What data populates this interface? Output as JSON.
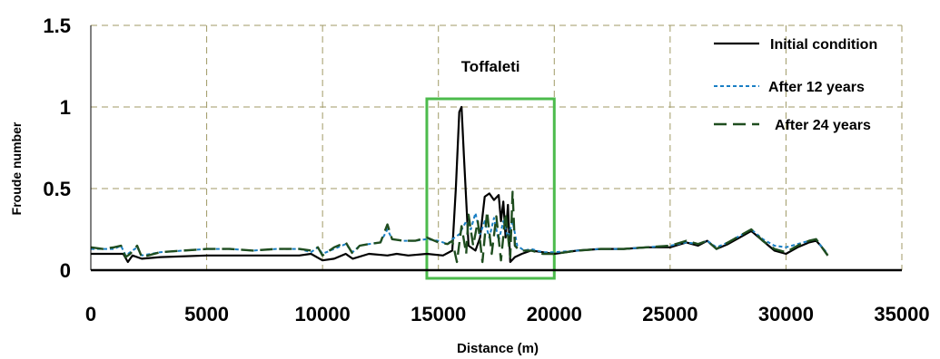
{
  "chart_data": {
    "type": "line",
    "title": "",
    "xlabel": "Distance (m)",
    "ylabel": "Froude number",
    "xlim": [
      0,
      35000
    ],
    "ylim": [
      0,
      1.5
    ],
    "x_ticks": [
      0,
      5000,
      10000,
      15000,
      20000,
      25000,
      30000,
      35000
    ],
    "x_tick_labels": [
      "0",
      "5000",
      "10000",
      "15000",
      "20000",
      "25000",
      "30000",
      "35000"
    ],
    "y_ticks": [
      0,
      0.5,
      1,
      1.5
    ],
    "y_tick_labels": [
      "0",
      "0.5",
      "1",
      "1.5"
    ],
    "grid": true,
    "grid_style": "dashed",
    "grid_color": "#a09a66",
    "legend_position": "top-right",
    "annotation": {
      "text": "Toffaleti",
      "box_x_range": [
        14500,
        20000
      ],
      "box_y_range": [
        -0.05,
        1.05
      ],
      "box_color": "#4cbb4c"
    },
    "series": [
      {
        "name": "Initial condition",
        "color": "#000000",
        "style": "solid",
        "points": [
          [
            0,
            0.1
          ],
          [
            1000,
            0.1
          ],
          [
            1400,
            0.1
          ],
          [
            1600,
            0.05
          ],
          [
            1800,
            0.09
          ],
          [
            2200,
            0.07
          ],
          [
            3000,
            0.08
          ],
          [
            5000,
            0.09
          ],
          [
            7000,
            0.09
          ],
          [
            9000,
            0.09
          ],
          [
            9500,
            0.1
          ],
          [
            10000,
            0.06
          ],
          [
            10500,
            0.07
          ],
          [
            11000,
            0.1
          ],
          [
            11300,
            0.07
          ],
          [
            12000,
            0.1
          ],
          [
            12800,
            0.09
          ],
          [
            13200,
            0.1
          ],
          [
            13700,
            0.09
          ],
          [
            14500,
            0.1
          ],
          [
            15200,
            0.09
          ],
          [
            15600,
            0.12
          ],
          [
            15750,
            0.5
          ],
          [
            15900,
            0.97
          ],
          [
            16000,
            1.0
          ],
          [
            16100,
            0.7
          ],
          [
            16300,
            0.15
          ],
          [
            16600,
            0.12
          ],
          [
            16800,
            0.2
          ],
          [
            17000,
            0.45
          ],
          [
            17200,
            0.47
          ],
          [
            17400,
            0.43
          ],
          [
            17600,
            0.46
          ],
          [
            17700,
            0.3
          ],
          [
            17800,
            0.42
          ],
          [
            17900,
            0.2
          ],
          [
            18000,
            0.4
          ],
          [
            18100,
            0.05
          ],
          [
            18300,
            0.08
          ],
          [
            18600,
            0.1
          ],
          [
            19000,
            0.12
          ],
          [
            19500,
            0.11
          ],
          [
            20000,
            0.1
          ],
          [
            21000,
            0.12
          ],
          [
            22000,
            0.13
          ],
          [
            23000,
            0.13
          ],
          [
            24000,
            0.14
          ],
          [
            25000,
            0.14
          ],
          [
            25700,
            0.17
          ],
          [
            26200,
            0.15
          ],
          [
            26600,
            0.18
          ],
          [
            27000,
            0.13
          ],
          [
            27500,
            0.16
          ],
          [
            28000,
            0.2
          ],
          [
            28500,
            0.24
          ],
          [
            29000,
            0.18
          ],
          [
            29500,
            0.12
          ],
          [
            30000,
            0.1
          ],
          [
            30500,
            0.14
          ],
          [
            31000,
            0.17
          ],
          [
            31300,
            0.18
          ],
          [
            31500,
            0.15
          ],
          [
            31800,
            0.09
          ]
        ]
      },
      {
        "name": "After 12 years",
        "color": "#1a7fc4",
        "style": "dotted",
        "points": [
          [
            0,
            0.13
          ],
          [
            500,
            0.13
          ],
          [
            1000,
            0.13
          ],
          [
            1300,
            0.15
          ],
          [
            1500,
            0.09
          ],
          [
            1700,
            0.11
          ],
          [
            2000,
            0.14
          ],
          [
            2200,
            0.09
          ],
          [
            3000,
            0.11
          ],
          [
            4000,
            0.12
          ],
          [
            5000,
            0.13
          ],
          [
            6000,
            0.13
          ],
          [
            7000,
            0.12
          ],
          [
            8000,
            0.13
          ],
          [
            9000,
            0.13
          ],
          [
            9500,
            0.11
          ],
          [
            9800,
            0.14
          ],
          [
            10000,
            0.1
          ],
          [
            10500,
            0.13
          ],
          [
            11000,
            0.16
          ],
          [
            11300,
            0.11
          ],
          [
            11600,
            0.15
          ],
          [
            12000,
            0.16
          ],
          [
            12500,
            0.17
          ],
          [
            12800,
            0.25
          ],
          [
            13000,
            0.19
          ],
          [
            13500,
            0.18
          ],
          [
            14000,
            0.18
          ],
          [
            14500,
            0.19
          ],
          [
            15000,
            0.18
          ],
          [
            15400,
            0.16
          ],
          [
            15600,
            0.19
          ],
          [
            15900,
            0.22
          ],
          [
            16200,
            0.3
          ],
          [
            16400,
            0.25
          ],
          [
            16600,
            0.35
          ],
          [
            16800,
            0.22
          ],
          [
            17000,
            0.3
          ],
          [
            17200,
            0.2
          ],
          [
            17400,
            0.32
          ],
          [
            17600,
            0.18
          ],
          [
            17800,
            0.3
          ],
          [
            18000,
            0.2
          ],
          [
            18200,
            0.3
          ],
          [
            18400,
            0.15
          ],
          [
            18700,
            0.12
          ],
          [
            19000,
            0.13
          ],
          [
            19500,
            0.11
          ],
          [
            20000,
            0.11
          ],
          [
            21000,
            0.12
          ],
          [
            22000,
            0.13
          ],
          [
            23000,
            0.13
          ],
          [
            24000,
            0.14
          ],
          [
            25000,
            0.15
          ],
          [
            25700,
            0.17
          ],
          [
            26200,
            0.16
          ],
          [
            26600,
            0.18
          ],
          [
            27000,
            0.14
          ],
          [
            27500,
            0.17
          ],
          [
            28000,
            0.21
          ],
          [
            28500,
            0.25
          ],
          [
            29000,
            0.19
          ],
          [
            29500,
            0.15
          ],
          [
            30000,
            0.14
          ],
          [
            30500,
            0.16
          ],
          [
            31000,
            0.18
          ],
          [
            31300,
            0.19
          ],
          [
            31500,
            0.15
          ],
          [
            31800,
            0.1
          ]
        ]
      },
      {
        "name": "After 24 years",
        "color": "#1f4d1f",
        "style": "dashed",
        "points": [
          [
            0,
            0.14
          ],
          [
            500,
            0.13
          ],
          [
            1000,
            0.14
          ],
          [
            1300,
            0.15
          ],
          [
            1500,
            0.08
          ],
          [
            1700,
            0.1
          ],
          [
            2000,
            0.15
          ],
          [
            2200,
            0.08
          ],
          [
            3000,
            0.11
          ],
          [
            4000,
            0.12
          ],
          [
            5000,
            0.13
          ],
          [
            6000,
            0.13
          ],
          [
            7000,
            0.12
          ],
          [
            8000,
            0.13
          ],
          [
            9000,
            0.13
          ],
          [
            9500,
            0.12
          ],
          [
            9800,
            0.14
          ],
          [
            10000,
            0.09
          ],
          [
            10500,
            0.14
          ],
          [
            11000,
            0.17
          ],
          [
            11300,
            0.1
          ],
          [
            11600,
            0.15
          ],
          [
            12000,
            0.16
          ],
          [
            12500,
            0.17
          ],
          [
            12800,
            0.28
          ],
          [
            13000,
            0.19
          ],
          [
            13500,
            0.18
          ],
          [
            14000,
            0.18
          ],
          [
            14500,
            0.2
          ],
          [
            15000,
            0.17
          ],
          [
            15400,
            0.16
          ],
          [
            15600,
            0.18
          ],
          [
            15800,
            0.05
          ],
          [
            16000,
            0.27
          ],
          [
            16200,
            0.1
          ],
          [
            16300,
            0.34
          ],
          [
            16500,
            0.15
          ],
          [
            16700,
            0.3
          ],
          [
            16900,
            0.05
          ],
          [
            17100,
            0.36
          ],
          [
            17300,
            0.1
          ],
          [
            17500,
            0.33
          ],
          [
            17700,
            0.06
          ],
          [
            17900,
            0.35
          ],
          [
            18100,
            0.08
          ],
          [
            18200,
            0.48
          ],
          [
            18300,
            0.15
          ],
          [
            18500,
            0.12
          ],
          [
            19000,
            0.12
          ],
          [
            19500,
            0.1
          ],
          [
            20000,
            0.1
          ],
          [
            21000,
            0.12
          ],
          [
            22000,
            0.13
          ],
          [
            23000,
            0.13
          ],
          [
            24000,
            0.14
          ],
          [
            25000,
            0.15
          ],
          [
            25700,
            0.18
          ],
          [
            26200,
            0.16
          ],
          [
            26600,
            0.18
          ],
          [
            27000,
            0.13
          ],
          [
            27500,
            0.17
          ],
          [
            28000,
            0.21
          ],
          [
            28500,
            0.25
          ],
          [
            29000,
            0.18
          ],
          [
            29500,
            0.13
          ],
          [
            30000,
            0.11
          ],
          [
            30500,
            0.15
          ],
          [
            31000,
            0.18
          ],
          [
            31300,
            0.19
          ],
          [
            31500,
            0.15
          ],
          [
            31800,
            0.09
          ]
        ]
      }
    ]
  }
}
